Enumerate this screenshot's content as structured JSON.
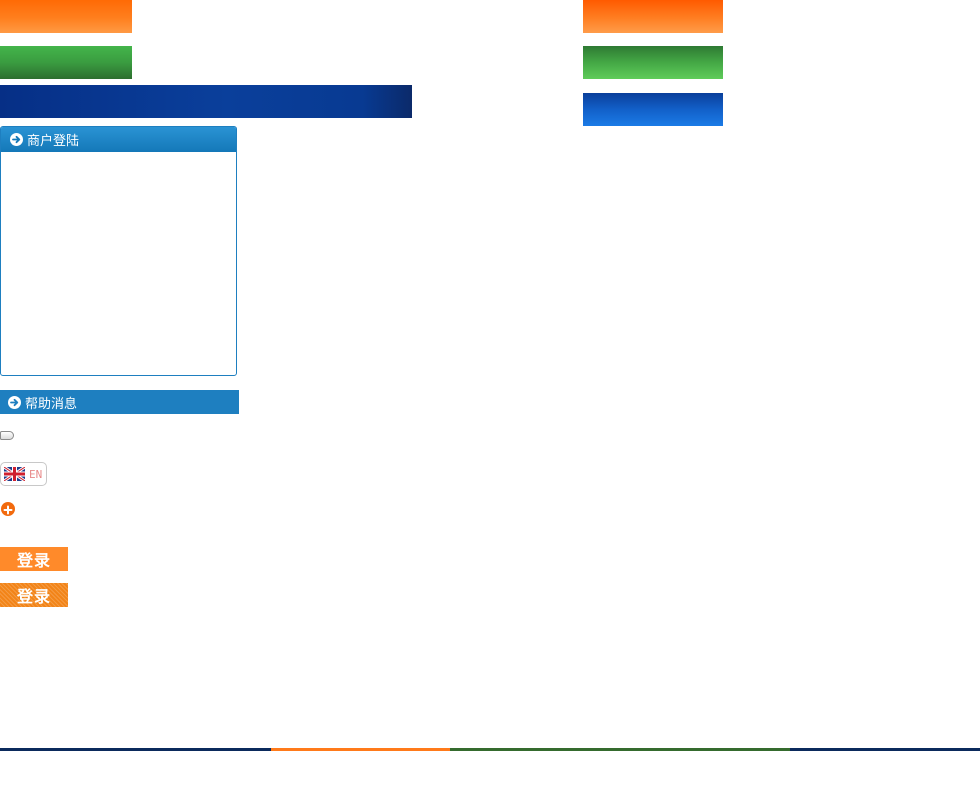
{
  "login_panel": {
    "title": "商户登陆",
    "icon": "arrow-right-circle-icon"
  },
  "help_bar": {
    "title": "帮助消息",
    "icon": "arrow-right-circle-icon"
  },
  "language": {
    "label": "EN",
    "icon": "uk-flag-icon"
  },
  "buttons": {
    "login_1": "登录",
    "login_2": "登录"
  },
  "colors": {
    "orange": "#ff7a1a",
    "green": "#3a9c40",
    "navy": "#0a3f9b",
    "panel_blue": "#1e7fc0"
  }
}
